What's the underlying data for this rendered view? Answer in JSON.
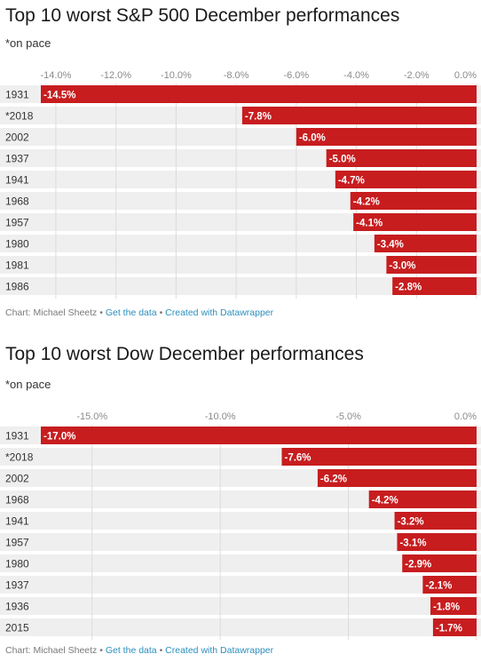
{
  "chart_data": [
    {
      "type": "bar",
      "orientation": "horizontal",
      "title": "Top 10 worst S&P 500 December performances",
      "subtitle": "*on pace",
      "categories": [
        "1931",
        "*2018",
        "2002",
        "1937",
        "1941",
        "1968",
        "1957",
        "1980",
        "1981",
        "1986"
      ],
      "values": [
        -14.5,
        -7.8,
        -6.0,
        -5.0,
        -4.7,
        -4.2,
        -4.1,
        -3.4,
        -3.0,
        -2.8
      ],
      "data_labels": [
        "-14.5%",
        "-7.8%",
        "-6.0%",
        "-5.0%",
        "-4.7%",
        "-4.2%",
        "-4.1%",
        "-3.4%",
        "-3.0%",
        "-2.8%"
      ],
      "xlim": [
        -14.5,
        0
      ],
      "ticks": [
        -14,
        -12,
        -10,
        -8,
        -6,
        -4,
        -2,
        0
      ],
      "tick_labels": [
        "-14.0%",
        "-12.0%",
        "-10.0%",
        "-8.0%",
        "-6.0%",
        "-4.0%",
        "-2.0%",
        "0.0%"
      ],
      "xlabel": "",
      "ylabel": "",
      "grid": true,
      "bar_color": "#c71d1f",
      "footer": {
        "source": "Chart: Michael Sheetz",
        "sep": "•",
        "data_link": "Get the data",
        "made_with": "Created with Datawrapper"
      }
    },
    {
      "type": "bar",
      "orientation": "horizontal",
      "title": "Top 10 worst Dow December performances",
      "subtitle": "*on pace",
      "categories": [
        "1931",
        "*2018",
        "2002",
        "1968",
        "1941",
        "1957",
        "1980",
        "1937",
        "1936",
        "2015"
      ],
      "values": [
        -17.0,
        -7.6,
        -6.2,
        -4.2,
        -3.2,
        -3.1,
        -2.9,
        -2.1,
        -1.8,
        -1.7
      ],
      "data_labels": [
        "-17.0%",
        "-7.6%",
        "-6.2%",
        "-4.2%",
        "-3.2%",
        "-3.1%",
        "-2.9%",
        "-2.1%",
        "-1.8%",
        "-1.7%"
      ],
      "xlim": [
        -17,
        0
      ],
      "ticks": [
        -15,
        -10,
        -5,
        0
      ],
      "tick_labels": [
        "-15.0%",
        "-10.0%",
        "-5.0%",
        "0.0%"
      ],
      "xlabel": "",
      "ylabel": "",
      "grid": true,
      "bar_color": "#c71d1f",
      "footer": {
        "source": "Chart: Michael Sheetz",
        "sep": "•",
        "data_link": "Get the data",
        "made_with": "Created with Datawrapper"
      }
    }
  ]
}
